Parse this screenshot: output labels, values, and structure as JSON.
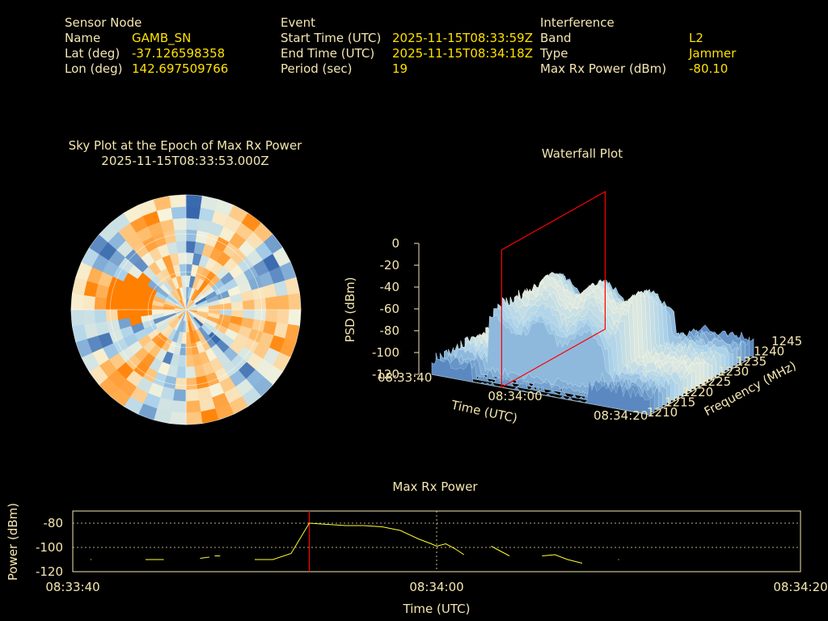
{
  "header": {
    "sensor": {
      "title": "Sensor Node",
      "name_label": "Name",
      "name_value": "GAMB_SN",
      "lat_label": "Lat (deg)",
      "lat_value": "-37.126598358",
      "lon_label": "Lon (deg)",
      "lon_value": "142.697509766"
    },
    "event": {
      "title": "Event",
      "start_label": "Start Time (UTC)",
      "start_value": "2025-11-15T08:33:59Z",
      "end_label": "End Time (UTC)",
      "end_value": "2025-11-15T08:34:18Z",
      "period_label": "Period (sec)",
      "period_value": "19"
    },
    "interference": {
      "title": "Interference",
      "band_label": "Band",
      "band_value": "L2",
      "type_label": "Type",
      "type_value": "Jammer",
      "power_label": "Max Rx Power (dBm)",
      "power_value": "-80.10"
    }
  },
  "colors": {
    "label": "#f5e6b0",
    "value": "#ffe000",
    "marker_line": "#ff0000",
    "series_line": "#ffff30",
    "colormap_low": "#2f5fa8",
    "colormap_mid": "#f7f4dc",
    "colormap_high": "#ff7f00"
  },
  "chart_data": [
    {
      "type": "heatmap",
      "projection": "polar",
      "title": "Sky Plot at the Epoch of Max Rx Power",
      "subtitle": "2025-11-15T08:33:53.000Z",
      "colormap": "blue-cream-orange",
      "peak_direction_note": "orange hotspot toward west at low elevation"
    },
    {
      "type": "area",
      "projection": "3d-waterfall",
      "title": "Waterfall Plot",
      "xlabel": "Time (UTC)",
      "ylabel": "Frequency (MHz)",
      "zlabel": "PSD (dBm)",
      "x_ticks": [
        "08:33:40",
        "08:34:00",
        "08:34:20"
      ],
      "y_ticks": [
        "1210",
        "1215",
        "1220",
        "1225",
        "1230",
        "1235",
        "1240",
        "1245"
      ],
      "z_ticks": [
        "0",
        "-20",
        "-40",
        "-60",
        "-80",
        "-100",
        "-120"
      ],
      "zlim": [
        -120,
        0
      ],
      "marker_time": "08:33:53"
    },
    {
      "type": "line",
      "title": "Max Rx Power",
      "xlabel": "Time (UTC)",
      "ylabel": "Power (dBm)",
      "x_ticks": [
        "08:33:40",
        "08:34:00",
        "08:34:20"
      ],
      "y_ticks": [
        -80,
        -100,
        -120
      ],
      "ylim": [
        -120,
        -70
      ],
      "xlim_sec": [
        0,
        40
      ],
      "marker_sec": 13,
      "series": [
        {
          "segments": [
            [
              [
                1.0,
                -110
              ]
            ],
            [
              [
                4.0,
                -110
              ],
              [
                5.0,
                -110
              ]
            ],
            [
              [
                7.0,
                -109
              ],
              [
                7.5,
                -108
              ]
            ],
            [
              [
                7.8,
                -107
              ],
              [
                8.1,
                -107
              ]
            ],
            [
              [
                10.0,
                -110
              ],
              [
                11.0,
                -110
              ],
              [
                12.0,
                -105
              ],
              [
                13.0,
                -80
              ],
              [
                14.0,
                -81
              ],
              [
                15.0,
                -82
              ],
              [
                16.0,
                -82
              ],
              [
                17.0,
                -83
              ],
              [
                18.0,
                -86
              ],
              [
                19.0,
                -93
              ],
              [
                19.7,
                -97
              ],
              [
                20.0,
                -99
              ],
              [
                20.5,
                -97
              ],
              [
                21.0,
                -101
              ],
              [
                21.5,
                -106
              ]
            ],
            [
              [
                23.0,
                -99
              ],
              [
                24.0,
                -107
              ]
            ],
            [
              [
                25.8,
                -107
              ],
              [
                26.5,
                -106
              ],
              [
                27.2,
                -110
              ],
              [
                28.0,
                -113
              ]
            ],
            [
              [
                30.0,
                -110
              ]
            ]
          ]
        }
      ]
    }
  ]
}
